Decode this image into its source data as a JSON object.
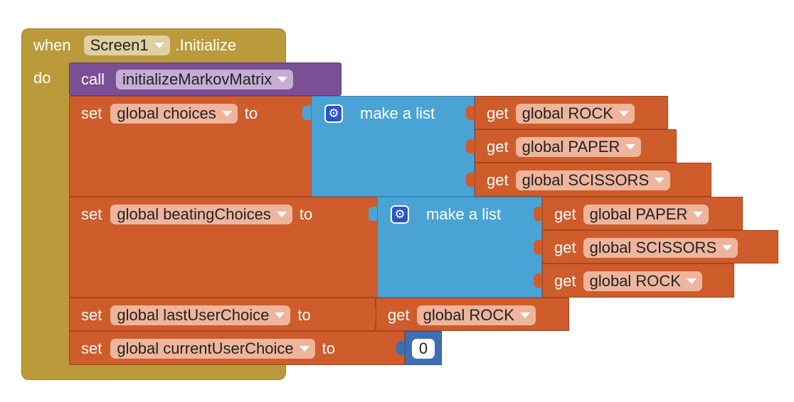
{
  "event": {
    "when_label": "when",
    "component": "Screen1",
    "event_name": ".Initialize",
    "do_label": "do"
  },
  "call_block": {
    "call_label": "call",
    "procedure": "initializeMarkovMatrix"
  },
  "set_choices": {
    "set_label": "set",
    "variable": "global choices",
    "to_label": "to",
    "list_label": "make a list",
    "items": [
      {
        "get_label": "get",
        "variable": "global ROCK"
      },
      {
        "get_label": "get",
        "variable": "global PAPER"
      },
      {
        "get_label": "get",
        "variable": "global SCISSORS"
      }
    ]
  },
  "set_beating": {
    "set_label": "set",
    "variable": "global beatingChoices",
    "to_label": "to",
    "list_label": "make a list",
    "items": [
      {
        "get_label": "get",
        "variable": "global PAPER"
      },
      {
        "get_label": "get",
        "variable": "global SCISSORS"
      },
      {
        "get_label": "get",
        "variable": "global ROCK"
      }
    ]
  },
  "set_last": {
    "set_label": "set",
    "variable": "global lastUserChoice",
    "to_label": "to",
    "get_label": "get",
    "get_variable": "global ROCK"
  },
  "set_current": {
    "set_label": "set",
    "variable": "global currentUserChoice",
    "to_label": "to",
    "value": "0"
  },
  "colors": {
    "event": "#ba9a3a",
    "procedure": "#7a4f95",
    "variable": "#cf5c2b",
    "list": "#4aa3d5",
    "math": "#3f6fb3"
  },
  "icons": [
    "mutator-gear-icon",
    "dropdown-arrow-icon"
  ]
}
